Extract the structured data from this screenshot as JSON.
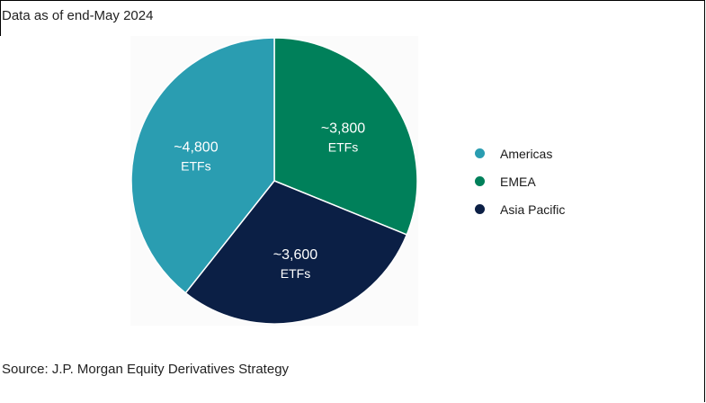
{
  "note": "Data as of end-May 2024",
  "source": "Source: J.P. Morgan Equity Derivatives Strategy",
  "chart_data": {
    "type": "pie",
    "title": "",
    "start_angle_deg": 0,
    "direction": "clockwise",
    "slices": [
      {
        "name": "EMEA",
        "value": 3800,
        "value_label": "~3,800",
        "unit_label": "ETFs",
        "color": "#00805a"
      },
      {
        "name": "Asia Pacific",
        "value": 3600,
        "value_label": "~3,600",
        "unit_label": "ETFs",
        "color": "#0b1f45"
      },
      {
        "name": "Americas",
        "value": 4800,
        "value_label": "~4,800",
        "unit_label": "ETFs",
        "color": "#2a9db1"
      }
    ],
    "legend": {
      "placement": "right",
      "entries": [
        {
          "label": "Americas",
          "color": "#2a9db1"
        },
        {
          "label": "EMEA",
          "color": "#00805a"
        },
        {
          "label": "Asia Pacific",
          "color": "#0b1f45"
        }
      ]
    }
  }
}
